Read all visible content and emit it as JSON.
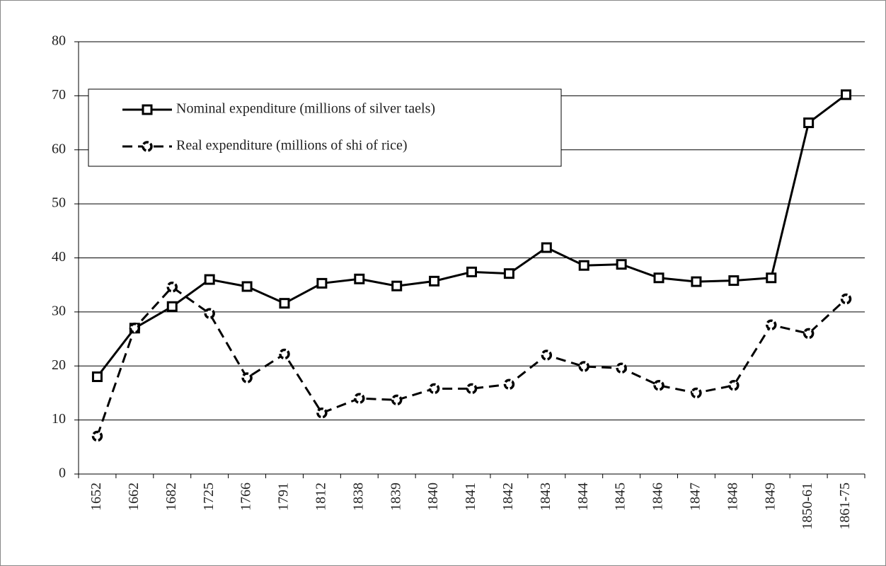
{
  "chart_data": {
    "type": "line",
    "categories": [
      "1652",
      "1662",
      "1682",
      "1725",
      "1766",
      "1791",
      "1812",
      "1838",
      "1839",
      "1840",
      "1841",
      "1842",
      "1843",
      "1844",
      "1845",
      "1846",
      "1847",
      "1848",
      "1849",
      "1850-61",
      "1861-75"
    ],
    "series": [
      {
        "name": "Nominal expenditure (millions of silver taels)",
        "color": "#000000",
        "marker": "square",
        "dash": false,
        "values": [
          18,
          27,
          31,
          36,
          34.7,
          31.6,
          35.3,
          36.1,
          34.8,
          35.7,
          37.4,
          37.1,
          41.9,
          38.6,
          38.8,
          36.3,
          35.6,
          35.8,
          36.3,
          65,
          70.2
        ]
      },
      {
        "name": "Real expenditure (millions of shi of rice)",
        "color": "#000000",
        "marker": "circle",
        "dash": true,
        "values": [
          7,
          27,
          34.6,
          29.7,
          17.8,
          22.2,
          11.3,
          14,
          13.7,
          15.8,
          15.8,
          16.6,
          22,
          19.9,
          19.6,
          16.4,
          15,
          16.4,
          27.6,
          26,
          32.4
        ]
      }
    ],
    "ylim": [
      0,
      80
    ],
    "yticks": [
      0,
      10,
      20,
      30,
      40,
      50,
      60,
      70,
      80
    ],
    "grid": true,
    "legend": "upper left"
  }
}
